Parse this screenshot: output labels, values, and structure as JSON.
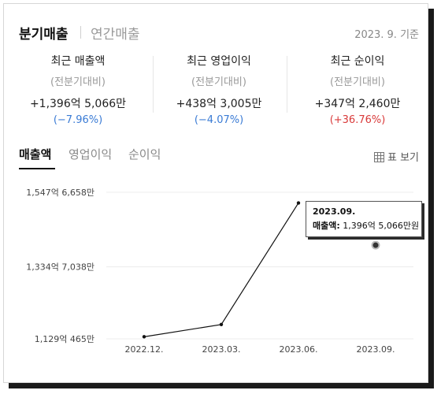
{
  "header": {
    "active_tab": "분기매출",
    "inactive_tab": "연간매출",
    "as_of": "2023. 9. 기준"
  },
  "stats": [
    {
      "label": "최근 매출액",
      "sub": "(전분기대비)",
      "value": "+1,396억 5,066만",
      "pct": "(−7.96%)",
      "color": "#3a7bd5"
    },
    {
      "label": "최근 영업이익",
      "sub": "(전분기대비)",
      "value": "+438억 3,005만",
      "pct": "(−4.07%)",
      "color": "#3a7bd5"
    },
    {
      "label": "최근 순이익",
      "sub": "(전분기대비)",
      "value": "+347억 2,460만",
      "pct": "(+36.76%)",
      "color": "#d93a3a"
    }
  ],
  "tabs": {
    "items": [
      "매출액",
      "영업이익",
      "순이익"
    ],
    "table_view": "표 보기"
  },
  "tooltip": {
    "date": "2023.09.",
    "key": "매출액:",
    "value": "1,396억 5,066만원"
  },
  "chart_data": {
    "type": "line",
    "categories": [
      "2022.12.",
      "2023.03.",
      "2023.06.",
      "2023.09."
    ],
    "x": [
      "2022.12.",
      "2023.03.",
      "2023.06.",
      "2023.09."
    ],
    "series": [
      {
        "values": [
          1135.0,
          1170.0,
          1517.2,
          1396.5066
        ]
      }
    ],
    "ylim": [
      1129.0465,
      1547.6658
    ],
    "y_ticks": [
      1129.0465,
      1334.7038,
      1547.6658
    ],
    "y_tick_labels": [
      "1,129억 465만",
      "1,334억 7,038만",
      "1,547억 6,658만"
    ],
    "title": "",
    "xlabel": "",
    "ylabel": "",
    "grid": true,
    "legend": "none",
    "line_color": "#111111",
    "highlight_index": 3
  }
}
